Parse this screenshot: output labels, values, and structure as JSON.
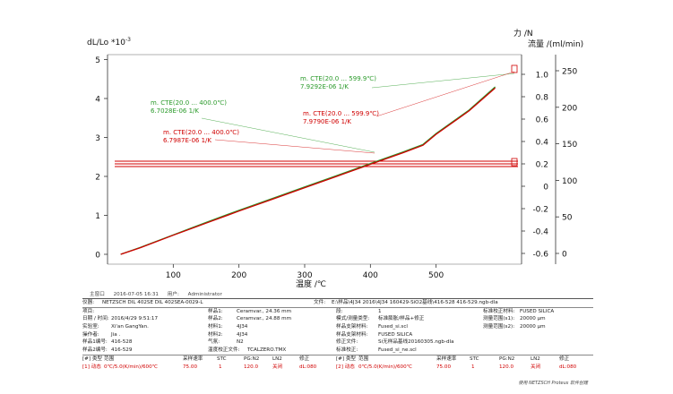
{
  "chart_data": {
    "type": "line",
    "y_left_label_main": "dL/Lo *10",
    "y_left_label_exp": "-3",
    "y_right1_label": "力 /N",
    "y_right2_label": "流量 /(ml/min)",
    "xlabel": "温度 /℃",
    "x_ticks": [
      "100",
      "200",
      "300",
      "400",
      "500"
    ],
    "y_left_ticks": [
      "0",
      "1",
      "2",
      "3",
      "4",
      "5"
    ],
    "y_right1_ticks": [
      "-0.6",
      "-0.4",
      "-0.2",
      "0",
      "0.2",
      "0.4",
      "0.6",
      "0.8",
      "1.0"
    ],
    "y_right2_ticks": [
      "0",
      "50",
      "100",
      "150",
      "200",
      "250"
    ],
    "xlim": [
      0,
      600
    ],
    "ylim_left": [
      -0.2,
      5.1
    ],
    "series": [
      {
        "color": "#2a9a2a",
        "x": [
          20,
          50,
          100,
          150,
          200,
          250,
          300,
          350,
          400,
          450,
          480,
          500,
          550,
          590
        ],
        "y": [
          0.0,
          0.18,
          0.5,
          0.82,
          1.13,
          1.43,
          1.73,
          2.03,
          2.33,
          2.63,
          2.82,
          3.1,
          3.7,
          4.3
        ]
      },
      {
        "color": "#d00000",
        "x": [
          20,
          50,
          100,
          150,
          200,
          250,
          300,
          350,
          400,
          450,
          480,
          500,
          550,
          590
        ],
        "y": [
          0.0,
          0.17,
          0.49,
          0.8,
          1.11,
          1.41,
          1.71,
          2.01,
          2.31,
          2.61,
          2.8,
          3.08,
          3.68,
          4.27
        ]
      }
    ],
    "annotations": [
      {
        "label": "m. CTE(20.0 ... 599.9℃)",
        "value": "7.9292E-06 1/K",
        "color": "#2a9a2a"
      },
      {
        "label": "m. CTE(20.0 ... 400.0℃)",
        "value": "6.7028E-06 1/K",
        "color": "#2a9a2a"
      },
      {
        "label": "m. CTE(20.0 ... 599.9℃)",
        "value": "7.9790E-06 1/K",
        "color": "#d00000"
      },
      {
        "label": "m. CTE(20.0 ... 400.0℃)",
        "value": "6.7987E-06 1/K",
        "color": "#d00000"
      }
    ],
    "colors": {
      "green": "#2a9a2a",
      "red": "#d00000"
    }
  },
  "meta": {
    "main_label": "主窗口",
    "main_date": "2016-07-05 16:31",
    "user_label": "用户:",
    "user": "Administrator"
  },
  "info": {
    "instrument_label": "仪器:",
    "instrument": "NETZSCH DIL 402SE DIL 402SEA-0029-L",
    "file_label": "文件:",
    "file": "E:\\样品\\4J34 2016\\4J34 160429-SiO2基线\\416-528 416-529.ngb-dla",
    "project_label": "项目:",
    "sample1_label": "样品1:",
    "sample1": "Ceramvar., 24.36 mm",
    "seg_label": "段:",
    "seg": "1",
    "std_sample_label": "标准校正材料:",
    "std_sample": "FUSED SILICA",
    "date_label": "日期 / 时间:",
    "date": "2016/4/29 9:51:17",
    "sample2_label": "样品2:",
    "sample2": "Ceramvar., 24.88 mm",
    "mode_label": "模式/测量类型:",
    "mode": "标准膨胀/样品+修正",
    "range1_label": "测量范围(s1):",
    "range1": "20000 µm",
    "lab_label": "实验室:",
    "lab": "Xi'an GangYan.",
    "material1_label": "材料1:",
    "material1": "4J34",
    "holder_label": "样品支架材料:",
    "holder": "Fused_si.scl",
    "range2_label": "测量范围(s2):",
    "range2": "20000 µm",
    "operator_label": "操作者:",
    "operator": "Jia .",
    "material2_label": "材料2:",
    "material2": "4J34",
    "holder2_label": "样品支架材料:",
    "holder2": "FUSED SILICA",
    "sample_no1_label": "样品1编号:",
    "sample_no1": "416-528",
    "gas_label": "气氛:",
    "gas": "N2",
    "corr_file_label": "修正文件:",
    "corr_file": "Si无样品基线20160305.ngb-dla",
    "sample_no2_label": "样品2编号:",
    "sample_no2": "416-529",
    "temp_cal_label": "温度校正文件:",
    "temp_cal": "TCALZERO.TMX",
    "std_corr_label": "标准校正:",
    "std_corr": "Fused_si_ne.scl",
    "hdr_type": "[#] 类型",
    "hdr_range": "范围",
    "hdr_rate": "采样速率",
    "hdr_stc": "STC",
    "hdr_pg": "PG:N2",
    "hdr_ln2": "LN2",
    "hdr_corr": "修正",
    "seg1_id": "[1] 动态",
    "seg1_range": "0℃/5.0(K/min)/600℃",
    "seg1_rate": "75.00",
    "seg1_stc": "1",
    "seg1_pg": "120.0",
    "seg1_ln2": "关闭",
    "seg1_corr": "dL:080",
    "seg2_id": "[2] 动态",
    "seg2_range": "0℃/5.0(K/min)/600℃",
    "seg2_rate": "75.00",
    "seg2_stc": "1",
    "seg2_pg": "120.0",
    "seg2_ln2": "关闭",
    "seg2_corr": "dL:080",
    "brand": "使用 NETZSCH Proteus 软件创建"
  }
}
